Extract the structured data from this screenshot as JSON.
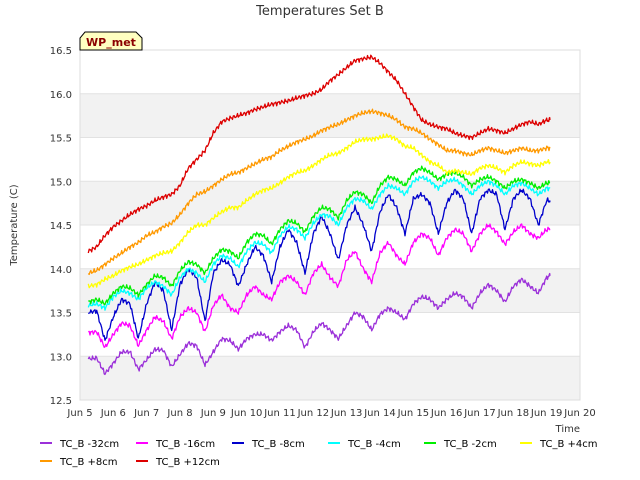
{
  "chart_data": {
    "type": "line",
    "title": "Temperatures Set B",
    "xlabel": "Time",
    "ylabel": "Temperature (C)",
    "badge": "WP_met",
    "ylim": [
      12.5,
      16.5
    ],
    "xlim": [
      5,
      20
    ],
    "yticks": [
      "12.5",
      "13.0",
      "13.5",
      "14.0",
      "14.5",
      "15.0",
      "15.5",
      "16.0",
      "16.5"
    ],
    "xticks": [
      {
        "x": 5,
        "label": "Jun 5"
      },
      {
        "x": 6,
        "label": "Jun 6"
      },
      {
        "x": 7,
        "label": "Jun 7"
      },
      {
        "x": 8,
        "label": "Jun 8"
      },
      {
        "x": 9,
        "label": "Jun 9"
      },
      {
        "x": 10,
        "label": "Jun 10"
      },
      {
        "x": 11,
        "label": "Jun 11"
      },
      {
        "x": 12,
        "label": "Jun 12"
      },
      {
        "x": 13,
        "label": "Jun 13"
      },
      {
        "x": 14,
        "label": "Jun 14"
      },
      {
        "x": 15,
        "label": "Jun 15"
      },
      {
        "x": 16,
        "label": "Jun 16"
      },
      {
        "x": 17,
        "label": "Jun 17"
      },
      {
        "x": 18,
        "label": "Jun 18"
      },
      {
        "x": 19,
        "label": "Jun 19"
      },
      {
        "x": 20,
        "label": "Jun 20"
      }
    ],
    "grid": true,
    "legend_position": "bottom",
    "x": [
      5.25,
      5.5,
      5.75,
      6,
      6.25,
      6.5,
      6.75,
      7,
      7.25,
      7.5,
      7.75,
      8,
      8.25,
      8.5,
      8.75,
      9,
      9.25,
      9.5,
      9.75,
      10,
      10.25,
      10.5,
      10.75,
      11,
      11.25,
      11.5,
      11.75,
      12,
      12.25,
      12.5,
      12.75,
      13,
      13.25,
      13.5,
      13.75,
      14,
      14.25,
      14.5,
      14.75,
      15,
      15.25,
      15.5,
      15.75,
      16,
      16.25,
      16.5,
      16.75,
      17,
      17.25,
      17.5,
      17.75,
      18,
      18.25,
      18.5,
      18.75,
      19,
      19.1
    ],
    "series": [
      {
        "name": "TC_B -32cm",
        "color": "#9b30d9",
        "values": [
          12.97,
          12.98,
          12.8,
          12.92,
          13.05,
          13.05,
          12.85,
          12.96,
          13.08,
          13.07,
          12.88,
          13.02,
          13.15,
          13.12,
          12.9,
          13.05,
          13.2,
          13.18,
          13.08,
          13.2,
          13.25,
          13.25,
          13.18,
          13.28,
          13.35,
          13.3,
          13.1,
          13.28,
          13.38,
          13.3,
          13.2,
          13.35,
          13.5,
          13.45,
          13.3,
          13.48,
          13.55,
          13.5,
          13.42,
          13.6,
          13.68,
          13.65,
          13.55,
          13.65,
          13.72,
          13.68,
          13.55,
          13.72,
          13.82,
          13.75,
          13.62,
          13.8,
          13.88,
          13.8,
          13.72,
          13.9,
          13.92
        ]
      },
      {
        "name": "TC_B -16cm",
        "color": "#ff00ff",
        "values": [
          13.27,
          13.28,
          13.1,
          13.25,
          13.38,
          13.35,
          13.12,
          13.3,
          13.45,
          13.4,
          13.2,
          13.45,
          13.55,
          13.5,
          13.28,
          13.58,
          13.7,
          13.55,
          13.5,
          13.7,
          13.8,
          13.7,
          13.65,
          13.85,
          13.92,
          13.85,
          13.7,
          13.95,
          14.05,
          13.9,
          13.8,
          14.1,
          14.2,
          14.0,
          13.85,
          14.18,
          14.3,
          14.15,
          14.05,
          14.3,
          14.4,
          14.35,
          14.15,
          14.35,
          14.45,
          14.4,
          14.2,
          14.4,
          14.5,
          14.42,
          14.28,
          14.42,
          14.5,
          14.4,
          14.35,
          14.45,
          14.45
        ]
      },
      {
        "name": "TC_B -8cm",
        "color": "#0000cc",
        "values": [
          13.5,
          13.52,
          13.18,
          13.45,
          13.65,
          13.6,
          13.2,
          13.6,
          13.85,
          13.75,
          13.3,
          13.82,
          14.0,
          13.9,
          13.4,
          13.95,
          14.1,
          14.05,
          13.8,
          14.05,
          14.25,
          14.15,
          13.85,
          14.25,
          14.45,
          14.3,
          13.95,
          14.4,
          14.6,
          14.4,
          14.1,
          14.5,
          14.7,
          14.5,
          14.2,
          14.65,
          14.85,
          14.7,
          14.4,
          14.8,
          14.85,
          14.75,
          14.4,
          14.75,
          14.9,
          14.8,
          14.4,
          14.8,
          14.9,
          14.85,
          14.45,
          14.8,
          14.9,
          14.8,
          14.5,
          14.78,
          14.78
        ]
      },
      {
        "name": "TC_B -4cm",
        "color": "#00ffff",
        "values": [
          13.58,
          13.6,
          13.55,
          13.68,
          13.75,
          13.72,
          13.65,
          13.78,
          13.85,
          13.8,
          13.7,
          13.9,
          14.0,
          13.95,
          13.85,
          14.05,
          14.15,
          14.12,
          14.02,
          14.2,
          14.3,
          14.28,
          14.18,
          14.38,
          14.48,
          14.45,
          14.35,
          14.52,
          14.62,
          14.6,
          14.5,
          14.7,
          14.8,
          14.78,
          14.68,
          14.85,
          14.95,
          14.92,
          14.85,
          15.0,
          15.05,
          15.0,
          14.92,
          15.0,
          15.02,
          14.95,
          14.85,
          14.95,
          15.0,
          14.95,
          14.85,
          14.95,
          14.98,
          14.92,
          14.85,
          14.92,
          14.92
        ]
      },
      {
        "name": "TC_B -2cm",
        "color": "#00ee00",
        "values": [
          13.62,
          13.65,
          13.6,
          13.72,
          13.8,
          13.78,
          13.7,
          13.82,
          13.92,
          13.9,
          13.8,
          13.98,
          14.08,
          14.05,
          13.95,
          14.12,
          14.22,
          14.2,
          14.12,
          14.3,
          14.4,
          14.38,
          14.28,
          14.45,
          14.55,
          14.52,
          14.42,
          14.6,
          14.7,
          14.68,
          14.58,
          14.78,
          14.88,
          14.85,
          14.75,
          14.95,
          15.05,
          15.02,
          14.95,
          15.1,
          15.15,
          15.1,
          15.02,
          15.08,
          15.1,
          15.05,
          14.95,
          15.02,
          15.05,
          15.0,
          14.92,
          15.0,
          15.02,
          14.98,
          14.92,
          14.98,
          14.98
        ]
      },
      {
        "name": "TC_B +4cm",
        "color": "#ffff00",
        "values": [
          13.8,
          13.82,
          13.88,
          13.92,
          13.98,
          14.02,
          14.05,
          14.1,
          14.15,
          14.18,
          14.2,
          14.3,
          14.42,
          14.5,
          14.5,
          14.58,
          14.65,
          14.7,
          14.7,
          14.78,
          14.85,
          14.9,
          14.92,
          14.98,
          15.05,
          15.1,
          15.12,
          15.18,
          15.25,
          15.3,
          15.32,
          15.38,
          15.45,
          15.48,
          15.48,
          15.5,
          15.52,
          15.48,
          15.4,
          15.38,
          15.3,
          15.22,
          15.18,
          15.1,
          15.12,
          15.1,
          15.08,
          15.15,
          15.18,
          15.15,
          15.1,
          15.18,
          15.22,
          15.2,
          15.18,
          15.22,
          15.22
        ]
      },
      {
        "name": "TC_B +8cm",
        "color": "#ff9900",
        "values": [
          13.95,
          13.98,
          14.05,
          14.12,
          14.18,
          14.25,
          14.3,
          14.38,
          14.42,
          14.48,
          14.52,
          14.62,
          14.75,
          14.85,
          14.88,
          14.95,
          15.02,
          15.08,
          15.1,
          15.15,
          15.2,
          15.25,
          15.28,
          15.35,
          15.4,
          15.45,
          15.48,
          15.52,
          15.58,
          15.62,
          15.65,
          15.7,
          15.75,
          15.78,
          15.8,
          15.78,
          15.75,
          15.7,
          15.62,
          15.6,
          15.55,
          15.48,
          15.42,
          15.35,
          15.35,
          15.32,
          15.3,
          15.35,
          15.38,
          15.35,
          15.32,
          15.35,
          15.38,
          15.35,
          15.35,
          15.38,
          15.38
        ]
      },
      {
        "name": "TC_B +12cm",
        "color": "#dd0000",
        "values": [
          14.2,
          14.25,
          14.38,
          14.48,
          14.55,
          14.62,
          14.68,
          14.72,
          14.78,
          14.82,
          14.85,
          14.95,
          15.15,
          15.25,
          15.35,
          15.55,
          15.68,
          15.72,
          15.75,
          15.78,
          15.82,
          15.85,
          15.88,
          15.9,
          15.92,
          15.95,
          15.98,
          16.0,
          16.05,
          16.15,
          16.22,
          16.3,
          16.38,
          16.4,
          16.42,
          16.35,
          16.25,
          16.15,
          16.0,
          15.85,
          15.7,
          15.65,
          15.62,
          15.6,
          15.55,
          15.52,
          15.5,
          15.55,
          15.6,
          15.58,
          15.55,
          15.6,
          15.65,
          15.68,
          15.65,
          15.7,
          15.7
        ]
      }
    ]
  }
}
